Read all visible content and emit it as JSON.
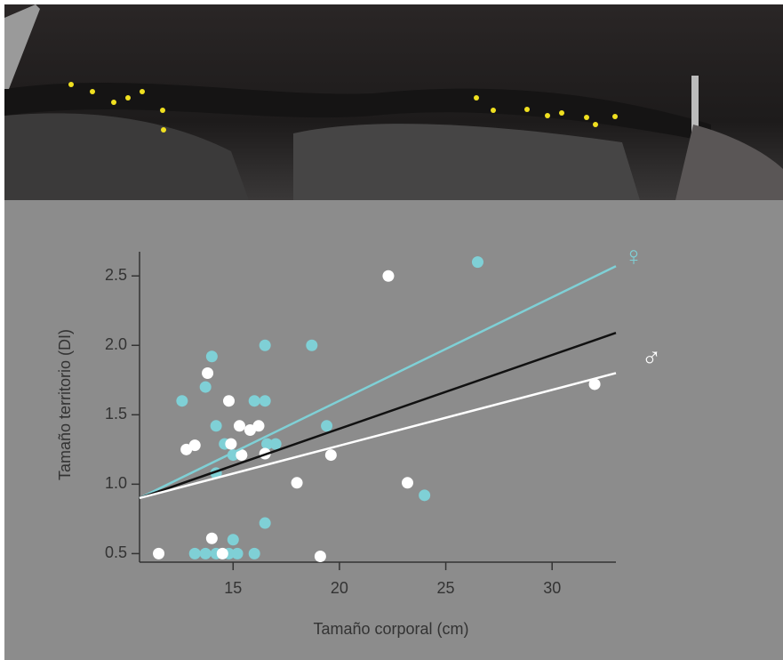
{
  "chart_data": {
    "type": "scatter",
    "xlabel": "Tamaño corporal (cm)",
    "ylabel": "Tamaño territorio (DI)",
    "xlim": [
      10.6,
      33
    ],
    "ylim": [
      0.4,
      2.7
    ],
    "xticks": [
      15,
      20,
      25,
      30
    ],
    "yticks": [
      0.5,
      {
        "value": 1,
        "label": "1.0"
      },
      1.5,
      {
        "value": 2,
        "label": "2.0"
      },
      2.5
    ],
    "series": [
      {
        "name": "♀",
        "color": "#7fd0d6",
        "x": [
          26.5,
          18.7,
          16.5,
          14,
          12.6,
          13.7,
          16,
          16.5,
          14.2,
          19.4,
          14.6,
          16.6,
          17,
          15,
          14.2,
          16.5,
          24,
          15,
          13.2,
          13.7,
          14.2,
          14.8,
          15.2,
          16
        ],
        "values": [
          2.6,
          2.0,
          2.0,
          1.92,
          1.6,
          1.7,
          1.6,
          1.6,
          1.42,
          1.42,
          1.29,
          1.29,
          1.29,
          1.21,
          1.08,
          0.72,
          0.92,
          0.6,
          0.5,
          0.5,
          0.5,
          0.5,
          0.5,
          0.5
        ]
      },
      {
        "name": "♂",
        "color": "#ffffff",
        "x": [
          22.3,
          13.8,
          14.8,
          12.8,
          13.2,
          15.3,
          15.8,
          16.2,
          14.9,
          15.4,
          16.5,
          19.6,
          18,
          23.2,
          32,
          14,
          11.5,
          14.5,
          19.1
        ],
        "values": [
          2.5,
          1.8,
          1.6,
          1.25,
          1.28,
          1.42,
          1.39,
          1.42,
          1.29,
          1.21,
          1.22,
          1.21,
          1.01,
          1.01,
          1.72,
          0.61,
          0.5,
          0.5,
          0.48
        ]
      }
    ],
    "lines": [
      {
        "color": "#7fd0d6",
        "x": [
          10.6,
          33
        ],
        "values": [
          0.9,
          2.57
        ]
      },
      {
        "color": "#111111",
        "x": [
          10.6,
          33
        ],
        "values": [
          0.9,
          2.09
        ]
      },
      {
        "color": "#ffffff",
        "x": [
          10.6,
          33
        ],
        "values": [
          0.9,
          1.8
        ]
      }
    ]
  }
}
